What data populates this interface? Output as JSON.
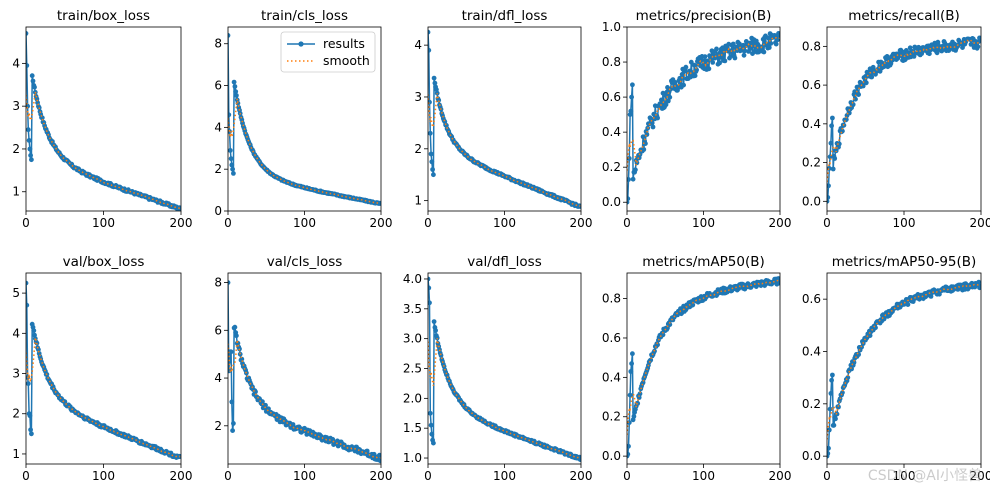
{
  "colors": {
    "results": "#1f77b4",
    "smooth": "#ff7f0e"
  },
  "legend": {
    "results": "results",
    "smooth": "smooth"
  },
  "watermark": "CSDN @AI小怪兽",
  "chart_data": [
    {
      "type": "line",
      "title": "train/box_loss",
      "xlim": [
        0,
        200
      ],
      "ylim": [
        0.55,
        4.85
      ],
      "xticks": [
        0,
        100,
        200
      ],
      "yticks": [
        1,
        2,
        3,
        4
      ],
      "curve": {
        "start": 4.7,
        "end": 0.6,
        "k": 0.05,
        "m": 0.3,
        "noise": 0.03,
        "early": [
          4.7,
          3.95,
          3.0,
          2.45,
          2.2,
          2.0,
          1.85,
          1.75
        ]
      }
    },
    {
      "type": "line",
      "title": "train/cls_loss",
      "xlim": [
        0,
        200
      ],
      "ylim": [
        0.0,
        8.8
      ],
      "xticks": [
        0,
        100,
        200
      ],
      "yticks": [
        0,
        2,
        4,
        6,
        8
      ],
      "legend": true,
      "curve": {
        "start": 8.4,
        "end": 0.35,
        "k": 0.05,
        "m": 0.18,
        "noise": 0.03,
        "early": [
          8.4,
          4.6,
          3.8,
          2.9,
          2.5,
          2.2,
          2.0,
          1.8
        ]
      }
    },
    {
      "type": "line",
      "title": "train/dfl_loss",
      "xlim": [
        0,
        200
      ],
      "ylim": [
        0.8,
        4.35
      ],
      "xticks": [
        0,
        100,
        200
      ],
      "yticks": [
        1,
        2,
        3,
        4
      ],
      "curve": {
        "start": 4.25,
        "end": 0.88,
        "k": 0.06,
        "m": 0.35,
        "noise": 0.02,
        "early": [
          4.25,
          3.9,
          2.9,
          2.3,
          1.9,
          1.75,
          1.6,
          1.5
        ]
      }
    },
    {
      "type": "line",
      "title": "metrics/precision(B)",
      "xlim": [
        0,
        200
      ],
      "ylim": [
        -0.05,
        1.0
      ],
      "xticks": [
        0,
        100,
        200
      ],
      "yticks": [
        0.0,
        0.2,
        0.4,
        0.6,
        0.8,
        1.0
      ],
      "curve": {
        "start": 0.0,
        "end": 0.93,
        "k": 0.025,
        "m": 0.15,
        "noise": 0.05,
        "early": [
          0.0,
          0.02,
          0.13,
          0.25,
          0.5,
          0.52,
          0.6,
          0.67
        ]
      }
    },
    {
      "type": "line",
      "title": "metrics/recall(B)",
      "xlim": [
        0,
        200
      ],
      "ylim": [
        -0.05,
        0.9
      ],
      "xticks": [
        0,
        100,
        200
      ],
      "yticks": [
        0.0,
        0.2,
        0.4,
        0.6,
        0.8
      ],
      "curve": {
        "start": 0.0,
        "end": 0.82,
        "k": 0.035,
        "m": 0.1,
        "noise": 0.03,
        "early": [
          0.0,
          0.02,
          0.08,
          0.17,
          0.23,
          0.3,
          0.39,
          0.43
        ]
      }
    },
    {
      "type": "line",
      "title": "val/box_loss",
      "xlim": [
        0,
        200
      ],
      "ylim": [
        0.75,
        5.5
      ],
      "xticks": [
        0,
        100,
        200
      ],
      "yticks": [
        1,
        2,
        3,
        4,
        5
      ],
      "curve": {
        "start": 5.25,
        "end": 0.9,
        "k": 0.05,
        "m": 0.35,
        "noise": 0.04,
        "early": [
          5.25,
          4.7,
          2.9,
          2.75,
          2.0,
          1.95,
          1.6,
          1.5
        ]
      }
    },
    {
      "type": "line",
      "title": "val/cls_loss",
      "xlim": [
        0,
        200
      ],
      "ylim": [
        0.4,
        8.4
      ],
      "xticks": [
        0,
        100,
        200
      ],
      "yticks": [
        2,
        4,
        6,
        8
      ],
      "curve": {
        "start": 8.0,
        "end": 0.65,
        "k": 0.05,
        "m": 0.3,
        "noise": 0.12,
        "early": [
          8.0,
          4.3,
          4.7,
          5.1,
          5.1,
          3.0,
          1.8,
          2.1
        ]
      }
    },
    {
      "type": "line",
      "title": "val/dfl_loss",
      "xlim": [
        0,
        200
      ],
      "ylim": [
        0.9,
        4.1
      ],
      "xticks": [
        0,
        100,
        200
      ],
      "yticks": [
        1.0,
        1.5,
        2.0,
        2.5,
        3.0,
        3.5,
        4.0
      ],
      "curve": {
        "start": 4.0,
        "end": 0.99,
        "k": 0.05,
        "m": 0.3,
        "noise": 0.02,
        "early": [
          4.0,
          3.85,
          3.6,
          1.75,
          1.55,
          1.4,
          1.3,
          1.25
        ]
      }
    },
    {
      "type": "line",
      "title": "metrics/mAP50(B)",
      "xlim": [
        0,
        200
      ],
      "ylim": [
        -0.04,
        0.93
      ],
      "xticks": [
        0,
        100,
        200
      ],
      "yticks": [
        0.0,
        0.2,
        0.4,
        0.6,
        0.8
      ],
      "curve": {
        "start": 0.0,
        "end": 0.89,
        "k": 0.03,
        "m": 0.1,
        "noise": 0.015,
        "early": [
          0.0,
          0.01,
          0.05,
          0.17,
          0.31,
          0.43,
          0.47,
          0.52
        ]
      }
    },
    {
      "type": "line",
      "title": "metrics/mAP50-95(B)",
      "xlim": [
        0,
        200
      ],
      "ylim": [
        -0.03,
        0.7
      ],
      "xticks": [
        0,
        100,
        200
      ],
      "yticks": [
        0.0,
        0.2,
        0.4,
        0.6
      ],
      "curve": {
        "start": 0.0,
        "end": 0.66,
        "k": 0.025,
        "m": 0.08,
        "noise": 0.012,
        "early": [
          0.0,
          0.01,
          0.03,
          0.1,
          0.18,
          0.24,
          0.29,
          0.31
        ]
      }
    }
  ]
}
